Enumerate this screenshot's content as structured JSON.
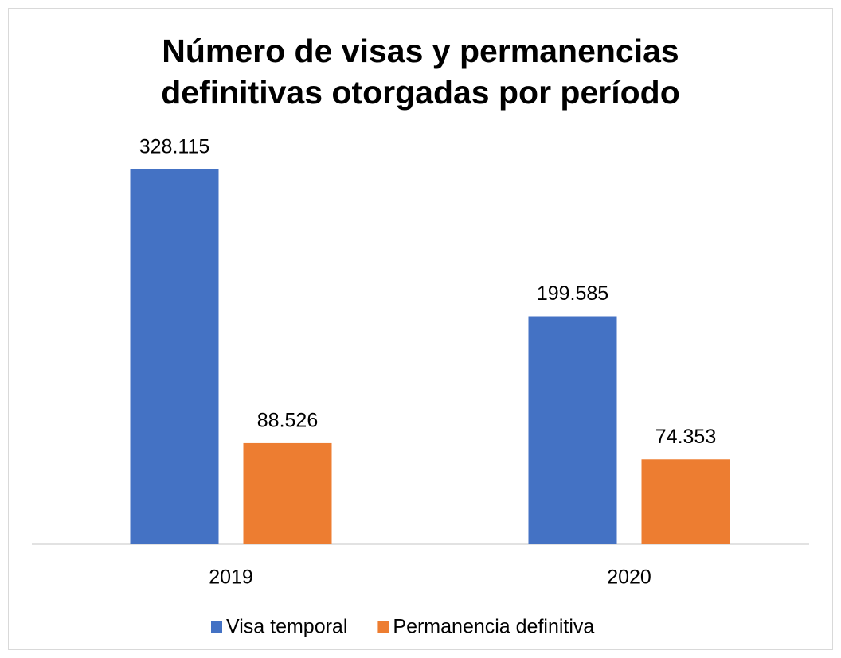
{
  "chart_data": {
    "type": "bar",
    "title": "Número de visas y permanencias definitivas otorgadas por período",
    "categories": [
      "2019",
      "2020"
    ],
    "series": [
      {
        "name": "Visa temporal",
        "color": "#4472c4",
        "values": [
          328115,
          199585
        ],
        "value_labels": [
          "328.115",
          "199.585"
        ]
      },
      {
        "name": "Permanencia definitiva",
        "color": "#ed7d31",
        "values": [
          88526,
          74353
        ],
        "value_labels": [
          "88.526",
          "74.353"
        ]
      }
    ],
    "legend": "bottom"
  }
}
